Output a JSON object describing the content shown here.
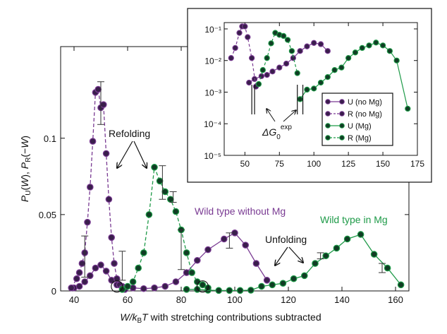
{
  "chart_data": [
    {
      "type": "line",
      "xlabel": "W/kBT with stretching contributions subtracted",
      "ylabel": "PU(W), PR(−W)",
      "xlim": [
        35,
        165
      ],
      "ylim": [
        0,
        0.16
      ],
      "xticks": [
        40,
        60,
        80,
        100,
        120,
        140,
        160
      ],
      "yticks": [
        {
          "v": 0,
          "t": "0"
        },
        {
          "v": 0.05,
          "t": "0.05"
        },
        {
          "v": 0.1,
          "t": "0.1"
        }
      ],
      "colors": {
        "purple": "#7a3b93",
        "green": "#1e9a48",
        "marker_purple": "#3a1e4c",
        "marker_green": "#103d24"
      },
      "series": [
        {
          "key": "U_noMg",
          "color": "purple",
          "dashed": false,
          "x": [
            40,
            42,
            44,
            46,
            48,
            50,
            52,
            54,
            56,
            58,
            62,
            66,
            70,
            74,
            78,
            82,
            86,
            90,
            96,
            100,
            104,
            108,
            112
          ],
          "y": [
            0.002,
            0.003,
            0.006,
            0.01,
            0.015,
            0.017,
            0.013,
            0.007,
            0.004,
            0.003,
            0.002,
            0.0015,
            0.002,
            0.003,
            0.006,
            0.012,
            0.02,
            0.027,
            0.034,
            0.038,
            0.03,
            0.018,
            0.007
          ]
        },
        {
          "key": "R_noMg",
          "color": "purple",
          "dashed": true,
          "x": [
            39,
            41,
            42,
            43,
            44,
            45,
            46,
            47,
            48,
            49,
            50,
            51,
            52,
            53,
            54,
            55,
            56,
            57,
            58,
            59
          ],
          "y": [
            0.002,
            0.008,
            0.012,
            0.018,
            0.025,
            0.045,
            0.068,
            0.098,
            0.13,
            0.132,
            0.12,
            0.122,
            0.09,
            0.06,
            0.035,
            0.018,
            0.008,
            0.004,
            0.002,
            0.001
          ]
        },
        {
          "key": "U_Mg",
          "color": "green",
          "dashed": false,
          "x": [
            82,
            86,
            90,
            94,
            98,
            102,
            106,
            110,
            114,
            118,
            122,
            126,
            130,
            134,
            138,
            142,
            147,
            152,
            157,
            162
          ],
          "y": [
            0.001,
            0.001,
            0.0005,
            0.0003,
            0.0003,
            0.0003,
            0.0005,
            0.003,
            0.004,
            0.005,
            0.008,
            0.01,
            0.018,
            0.023,
            0.028,
            0.034,
            0.037,
            0.024,
            0.015,
            0.004
          ]
        },
        {
          "key": "R_Mg",
          "color": "green",
          "dashed": true,
          "x": [
            58,
            60,
            62,
            64,
            66,
            68,
            70,
            72,
            74,
            76,
            78,
            80,
            82,
            84,
            86,
            88,
            90
          ],
          "y": [
            0.001,
            0.003,
            0.006,
            0.015,
            0.025,
            0.05,
            0.081,
            0.072,
            0.065,
            0.06,
            0.052,
            0.04,
            0.025,
            0.012,
            0.006,
            0.004,
            0.002
          ]
        }
      ],
      "error_bars": [
        {
          "color": "purple",
          "x": 44,
          "lo": 0.009,
          "hi": 0.036
        },
        {
          "color": "purple",
          "x": 50,
          "lo": 0.109,
          "hi": 0.137
        },
        {
          "color": "purple",
          "x": 58,
          "lo": 0.007,
          "hi": 0.026
        },
        {
          "color": "purple",
          "x": 98,
          "lo": 0.028,
          "hi": 0.038
        },
        {
          "color": "green",
          "x": 73,
          "lo": 0.06,
          "hi": 0.082
        },
        {
          "color": "green",
          "x": 77,
          "lo": 0.058,
          "hi": 0.065
        },
        {
          "color": "green",
          "x": 80,
          "lo": 0.014,
          "hi": 0.04
        },
        {
          "color": "green",
          "x": 132,
          "lo": 0.021,
          "hi": 0.025
        },
        {
          "color": "green",
          "x": 155,
          "lo": 0.012,
          "hi": 0.018
        }
      ],
      "circled_points": [
        {
          "x": 56,
          "y": 0.002
        },
        {
          "x": 88,
          "y": 0.002
        }
      ],
      "annotations": {
        "refolding": "Refolding",
        "unfolding": "Unfolding",
        "wild_no_mg": "Wild type without Mg",
        "wild_mg": "Wild type in Mg"
      }
    },
    {
      "type": "line",
      "scale": "log",
      "xlim": [
        35,
        175
      ],
      "xticks": [
        50,
        75,
        100,
        125,
        150,
        175
      ],
      "yticks": [
        {
          "v": -5,
          "t": "10⁻⁵"
        },
        {
          "v": -4,
          "t": "10⁻⁴"
        },
        {
          "v": -3,
          "t": "10⁻³"
        },
        {
          "v": -2,
          "t": "10⁻²"
        },
        {
          "v": -1,
          "t": "10⁻¹"
        }
      ],
      "ylim_log10": [
        -5,
        -0.8
      ],
      "delta_g_label": {
        "base": "ΔG",
        "sub": "0",
        "sup": "exp"
      },
      "markers": [
        {
          "x": 55
        },
        {
          "x": 57
        },
        {
          "x": 88
        },
        {
          "x": 92
        }
      ],
      "legend": [
        {
          "label": "U (no Mg)",
          "color": "purple",
          "dashed": false
        },
        {
          "label": "R (no Mg)",
          "color": "purple",
          "dashed": true
        },
        {
          "label": "U (Mg)",
          "color": "green",
          "dashed": false
        },
        {
          "label": "R (Mg)",
          "color": "green",
          "dashed": true
        }
      ],
      "series": [
        {
          "color": "purple",
          "dashed": false,
          "x": [
            53,
            57,
            62,
            66,
            70,
            75,
            80,
            85,
            90,
            95,
            100,
            105,
            110
          ],
          "y": [
            0.002,
            0.0026,
            0.0032,
            0.0035,
            0.0045,
            0.006,
            0.008,
            0.012,
            0.02,
            0.028,
            0.036,
            0.033,
            0.02
          ]
        },
        {
          "color": "purple",
          "dashed": true,
          "x": [
            40,
            43,
            46,
            48,
            50,
            52,
            55,
            58
          ],
          "y": [
            0.012,
            0.025,
            0.075,
            0.12,
            0.12,
            0.055,
            0.012,
            0.0015
          ]
        },
        {
          "color": "green",
          "dashed": false,
          "x": [
            90,
            95,
            100,
            105,
            110,
            115,
            120,
            125,
            130,
            135,
            140,
            145,
            150,
            155,
            160,
            168
          ],
          "y": [
            0.0006,
            0.0012,
            0.0013,
            0.002,
            0.003,
            0.005,
            0.006,
            0.012,
            0.018,
            0.025,
            0.03,
            0.037,
            0.03,
            0.02,
            0.01,
            0.0003
          ]
        },
        {
          "color": "green",
          "dashed": true,
          "x": [
            60,
            63,
            66,
            69,
            72,
            75,
            78,
            81,
            84,
            88
          ],
          "y": [
            0.0018,
            0.005,
            0.012,
            0.035,
            0.075,
            0.065,
            0.06,
            0.045,
            0.02,
            0.004
          ]
        }
      ]
    }
  ]
}
